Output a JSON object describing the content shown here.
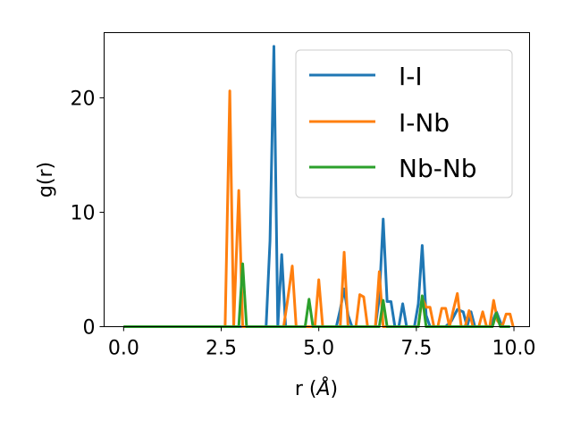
{
  "chart_data": {
    "type": "line",
    "title": "",
    "xlabel_main": "r (",
    "xlabel_unit": "Å",
    "xlabel_close": ")",
    "ylabel": "g(r)",
    "xlim": [
      -0.5,
      10.4
    ],
    "ylim": [
      0,
      25.7
    ],
    "xticks": [
      0.0,
      2.5,
      5.0,
      7.5,
      10.0
    ],
    "xtick_labels": [
      "0.0",
      "2.5",
      "5.0",
      "7.5",
      "10.0"
    ],
    "yticks": [
      0,
      10,
      20
    ],
    "ytick_labels": [
      "0",
      "10",
      "20"
    ],
    "grid": false,
    "legend_position": "top-right",
    "series": [
      {
        "name": "I-I",
        "color": "#1f77b4",
        "points": [
          [
            0.0,
            0
          ],
          [
            3.65,
            0
          ],
          [
            3.75,
            7.5
          ],
          [
            3.85,
            24.5
          ],
          [
            3.95,
            0
          ],
          [
            4.05,
            6.3
          ],
          [
            4.15,
            0
          ],
          [
            5.45,
            0
          ],
          [
            5.55,
            1.5
          ],
          [
            5.65,
            3.3
          ],
          [
            5.75,
            1.0
          ],
          [
            5.85,
            0
          ],
          [
            6.45,
            0
          ],
          [
            6.55,
            2.5
          ],
          [
            6.65,
            9.4
          ],
          [
            6.75,
            2.2
          ],
          [
            6.85,
            2.2
          ],
          [
            6.95,
            0
          ],
          [
            7.05,
            0
          ],
          [
            7.15,
            2.0
          ],
          [
            7.25,
            0
          ],
          [
            7.45,
            0
          ],
          [
            7.55,
            2.0
          ],
          [
            7.65,
            7.1
          ],
          [
            7.75,
            1.0
          ],
          [
            7.85,
            0
          ],
          [
            8.25,
            0
          ],
          [
            8.4,
            0.5
          ],
          [
            8.55,
            1.5
          ],
          [
            8.7,
            1.3
          ],
          [
            8.8,
            0
          ],
          [
            8.9,
            1.3
          ],
          [
            9.0,
            0
          ],
          [
            9.4,
            0
          ],
          [
            9.55,
            1.3
          ],
          [
            9.7,
            0
          ],
          [
            9.9,
            0
          ]
        ]
      },
      {
        "name": "I-Nb",
        "color": "#ff7f0e",
        "points": [
          [
            0.0,
            0
          ],
          [
            2.6,
            0
          ],
          [
            2.72,
            20.6
          ],
          [
            2.82,
            0
          ],
          [
            2.95,
            11.9
          ],
          [
            3.05,
            0
          ],
          [
            4.1,
            0
          ],
          [
            4.2,
            2.3
          ],
          [
            4.32,
            5.3
          ],
          [
            4.42,
            0
          ],
          [
            4.9,
            0
          ],
          [
            5.0,
            4.1
          ],
          [
            5.1,
            0
          ],
          [
            5.55,
            0
          ],
          [
            5.65,
            6.5
          ],
          [
            5.75,
            0
          ],
          [
            5.95,
            0
          ],
          [
            6.05,
            2.8
          ],
          [
            6.15,
            2.6
          ],
          [
            6.25,
            0
          ],
          [
            6.45,
            0
          ],
          [
            6.55,
            4.8
          ],
          [
            6.65,
            0
          ],
          [
            7.55,
            0
          ],
          [
            7.65,
            2.5
          ],
          [
            7.75,
            1.7
          ],
          [
            7.85,
            1.7
          ],
          [
            7.95,
            0
          ],
          [
            8.05,
            0
          ],
          [
            8.15,
            1.6
          ],
          [
            8.25,
            1.6
          ],
          [
            8.35,
            0
          ],
          [
            8.45,
            1.5
          ],
          [
            8.55,
            2.9
          ],
          [
            8.65,
            0
          ],
          [
            8.75,
            0
          ],
          [
            8.85,
            1.4
          ],
          [
            8.95,
            0
          ],
          [
            9.1,
            0
          ],
          [
            9.2,
            1.3
          ],
          [
            9.3,
            0
          ],
          [
            9.38,
            0
          ],
          [
            9.48,
            2.3
          ],
          [
            9.58,
            0.5
          ],
          [
            9.7,
            0
          ],
          [
            9.8,
            1.1
          ],
          [
            9.9,
            1.1
          ],
          [
            9.98,
            0
          ]
        ]
      },
      {
        "name": "Nb-Nb",
        "color": "#2ca02c",
        "points": [
          [
            0.0,
            0
          ],
          [
            2.95,
            0
          ],
          [
            3.05,
            5.5
          ],
          [
            3.15,
            0
          ],
          [
            4.65,
            0
          ],
          [
            4.75,
            2.4
          ],
          [
            4.85,
            0
          ],
          [
            6.55,
            0
          ],
          [
            6.65,
            2.3
          ],
          [
            6.75,
            0
          ],
          [
            7.55,
            0
          ],
          [
            7.65,
            2.7
          ],
          [
            7.75,
            0
          ],
          [
            9.45,
            0
          ],
          [
            9.55,
            1.2
          ],
          [
            9.65,
            0
          ],
          [
            9.9,
            0
          ]
        ]
      }
    ]
  }
}
